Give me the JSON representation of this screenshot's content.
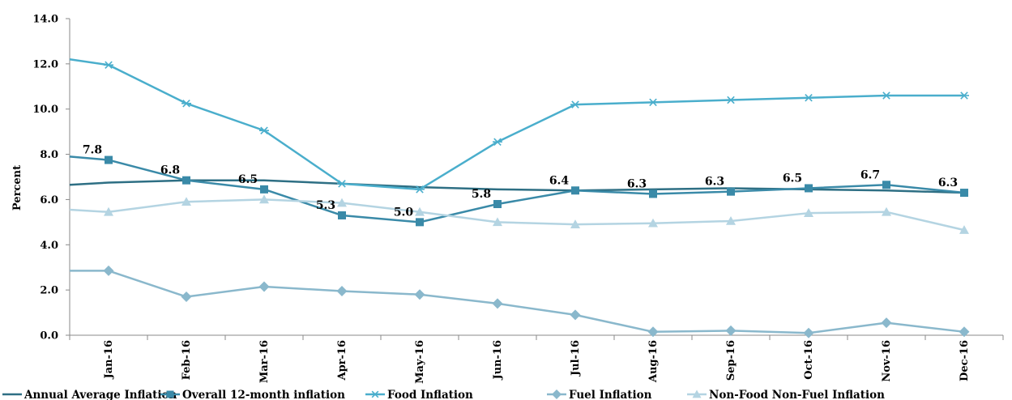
{
  "chart_data": {
    "type": "line",
    "title": "",
    "xlabel": "",
    "ylabel": "Percent",
    "ylim": [
      0,
      14
    ],
    "yticks": [
      "0.0",
      "2.0",
      "4.0",
      "6.0",
      "8.0",
      "10.0",
      "12.0",
      "14.0"
    ],
    "categories": [
      "Jan-16",
      "Feb-16",
      "Mar-16",
      "Apr-16",
      "May-16",
      "Jun-16",
      "Jul-16",
      "Aug-16",
      "Sep-16",
      "Oct-16",
      "Nov-16",
      "Dec-16"
    ],
    "grid": false,
    "legend": "bottom",
    "series": [
      {
        "name": "Annual Average Inflation",
        "color": "#2e6f84",
        "marker": "none",
        "start": 6.65,
        "values": [
          6.75,
          6.85,
          6.85,
          6.7,
          6.55,
          6.45,
          6.4,
          6.45,
          6.5,
          6.45,
          6.4,
          6.3
        ]
      },
      {
        "name": "Overall 12-month inflation",
        "color": "#3a8aa8",
        "marker": "square",
        "start": 7.9,
        "values": [
          7.75,
          6.85,
          6.45,
          5.3,
          5.0,
          5.8,
          6.4,
          6.25,
          6.35,
          6.5,
          6.65,
          6.3
        ],
        "labels": [
          "7.8",
          "6.8",
          "6.5",
          "5.3",
          "5.0",
          "5.8",
          "6.4",
          "6.3",
          "6.3",
          "6.5",
          "6.7",
          "6.3"
        ]
      },
      {
        "name": "Food Inflation",
        "color": "#4aaecc",
        "marker": "asterisk",
        "start": 12.2,
        "values": [
          11.95,
          10.25,
          9.05,
          6.7,
          6.45,
          8.55,
          10.2,
          10.3,
          10.4,
          10.5,
          10.6,
          10.6
        ]
      },
      {
        "name": "Fuel Inflation",
        "color": "#8ab8cc",
        "marker": "diamond",
        "start": 2.85,
        "values": [
          2.85,
          1.7,
          2.15,
          1.95,
          1.8,
          1.4,
          0.9,
          0.15,
          0.2,
          0.1,
          0.55,
          0.15
        ]
      },
      {
        "name": "Non-Food Non-Fuel Inflation",
        "color": "#b4d4e2",
        "marker": "triangle",
        "start": 5.55,
        "values": [
          5.45,
          5.9,
          6.0,
          5.85,
          5.45,
          5.0,
          4.9,
          4.95,
          5.05,
          5.4,
          5.45,
          4.65
        ]
      }
    ]
  }
}
